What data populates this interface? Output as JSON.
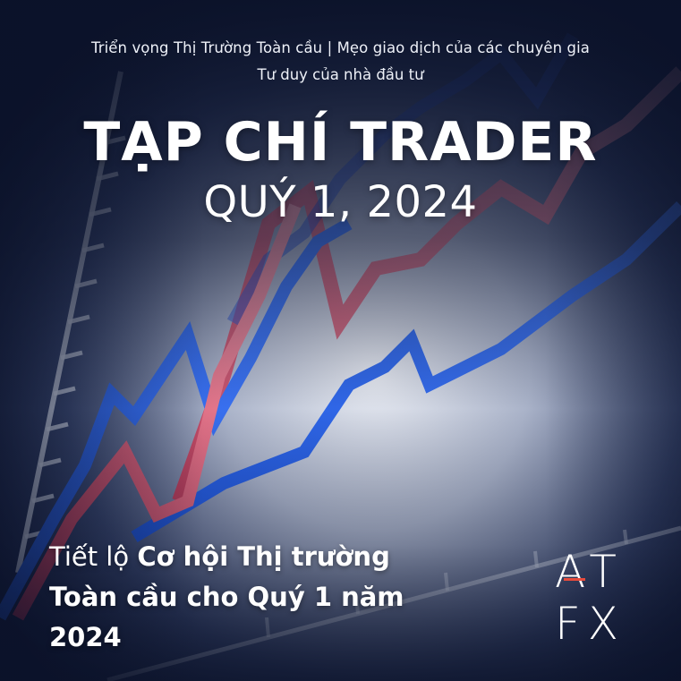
{
  "taglines": {
    "line1": "Triển vọng Thị Trường Toàn cầu | Mẹo giao dịch của các chuyên gia",
    "line2": "Tư duy của nhà đầu tư"
  },
  "title": {
    "main": "TẠP CHÍ TRADER",
    "quarter": "QUÝ 1, 2024"
  },
  "headline": {
    "prefix": "Tiết lộ ",
    "bold_part": "Cơ hội Thị trường Toàn cầu cho Quý 1 năm 2024"
  },
  "logo": {
    "row1": "AT",
    "row2": "FX",
    "accent_color": "#e84b3c"
  },
  "colors": {
    "background_dark": "#0d1430",
    "line_blue": "#2f6df0",
    "line_red": "#e0556e"
  }
}
